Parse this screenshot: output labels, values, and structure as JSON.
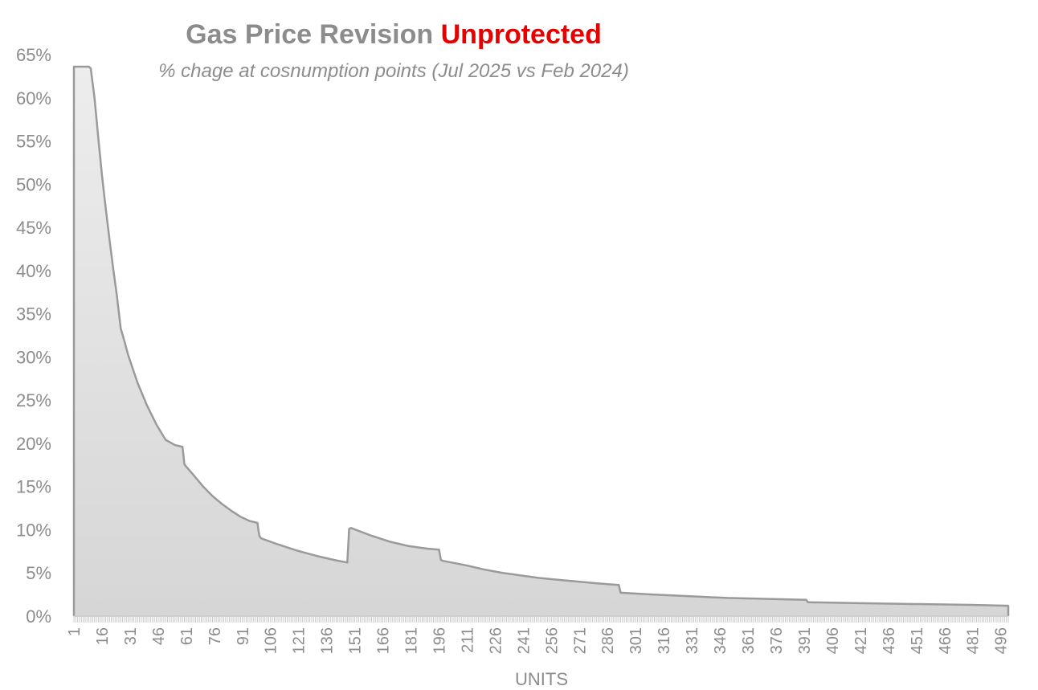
{
  "chart_data": {
    "type": "area",
    "title_parts": [
      {
        "text": "Gas Price Revision ",
        "color": "#8c8c8c"
      },
      {
        "text": "Unprotected",
        "color": "#e60000"
      }
    ],
    "subtitle": "% chage at cosnumption points (Jul 2025 vs Feb 2024)",
    "xlabel": "UNITS",
    "ylabel": "",
    "ylim": [
      0,
      65
    ],
    "xlim": [
      1,
      500
    ],
    "ytick_values": [
      0,
      5,
      10,
      15,
      20,
      25,
      30,
      35,
      40,
      45,
      50,
      55,
      60,
      65
    ],
    "ytick_labels": [
      "0%",
      "5%",
      "10%",
      "15%",
      "20%",
      "25%",
      "30%",
      "35%",
      "40%",
      "45%",
      "50%",
      "55%",
      "60%",
      "65%"
    ],
    "xtick_labels": [
      "1",
      "16",
      "31",
      "46",
      "61",
      "76",
      "91",
      "106",
      "121",
      "136",
      "151",
      "166",
      "181",
      "196",
      "211",
      "226",
      "241",
      "256",
      "271",
      "286",
      "301",
      "316",
      "331",
      "346",
      "361",
      "376",
      "391",
      "406",
      "421",
      "436",
      "451",
      "466",
      "481",
      "496"
    ],
    "series": [
      {
        "x": [
          1,
          9,
          10,
          12,
          14,
          16,
          18,
          20,
          22,
          24,
          26,
          28,
          30,
          35,
          40,
          45,
          50,
          55,
          59,
          60,
          61,
          65,
          70,
          75,
          80,
          85,
          90,
          95,
          99,
          100,
          101,
          110,
          120,
          130,
          140,
          147,
          148,
          149,
          160,
          170,
          180,
          190,
          196,
          197,
          198,
          210,
          220,
          230,
          240,
          250,
          260,
          270,
          280,
          292,
          293,
          294,
          310,
          330,
          350,
          370,
          390,
          392,
          393,
          394,
          420,
          450,
          480,
          500
        ],
        "y": [
          63.6,
          63.6,
          63.4,
          60.0,
          55.4,
          51.0,
          47.2,
          43.6,
          40.2,
          37.0,
          33.3,
          31.8,
          30.2,
          27.0,
          24.4,
          22.2,
          20.4,
          19.8,
          19.6,
          17.6,
          17.3,
          16.3,
          15.0,
          13.9,
          13.0,
          12.2,
          11.5,
          11.0,
          10.8,
          9.3,
          9.0,
          8.3,
          7.6,
          7.0,
          6.5,
          6.2,
          10.1,
          10.2,
          9.3,
          8.6,
          8.1,
          7.8,
          7.7,
          6.5,
          6.4,
          5.9,
          5.4,
          5.0,
          4.7,
          4.4,
          4.2,
          4.0,
          3.8,
          3.6,
          2.7,
          2.7,
          2.5,
          2.3,
          2.1,
          2.0,
          1.9,
          1.9,
          1.6,
          1.6,
          1.5,
          1.4,
          1.3,
          1.2
        ]
      }
    ],
    "fill_color_top": "#ededed",
    "fill_color_bottom": "#d6d6d6",
    "line_color": "#9a9a9a",
    "text_color": "#8c8c8c",
    "grid": false,
    "legend": "none"
  }
}
